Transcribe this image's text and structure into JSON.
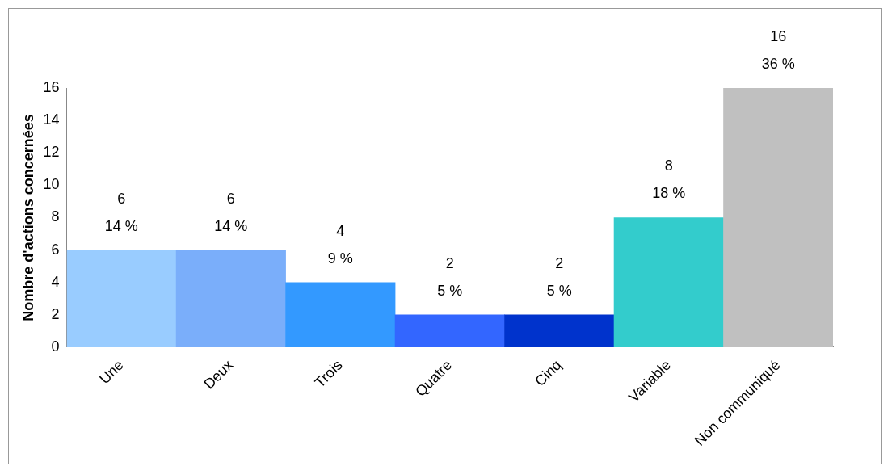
{
  "chart_data": {
    "type": "bar",
    "ylabel": "Nombre d'actions concernées",
    "categories": [
      "Une",
      "Deux",
      "Trois",
      "Quatre",
      "Cinq",
      "Variable",
      "Non communiqué"
    ],
    "values": [
      6,
      6,
      4,
      2,
      2,
      8,
      16
    ],
    "colors": [
      "#99ccff",
      "#7aaefa",
      "#3399ff",
      "#3366ff",
      "#0033cc",
      "#33cccc",
      "#c0c0c0"
    ],
    "value_labels": [
      "6\n14 %",
      "6\n14 %",
      "4\n9 %",
      "2\n5 %",
      "2\n5 %",
      "8\n18 %",
      "16\n36 %"
    ],
    "ylim": [
      0,
      16
    ],
    "yticks": [
      0,
      2,
      4,
      6,
      8,
      10,
      12,
      14,
      16
    ],
    "grid": false,
    "legend": false
  }
}
